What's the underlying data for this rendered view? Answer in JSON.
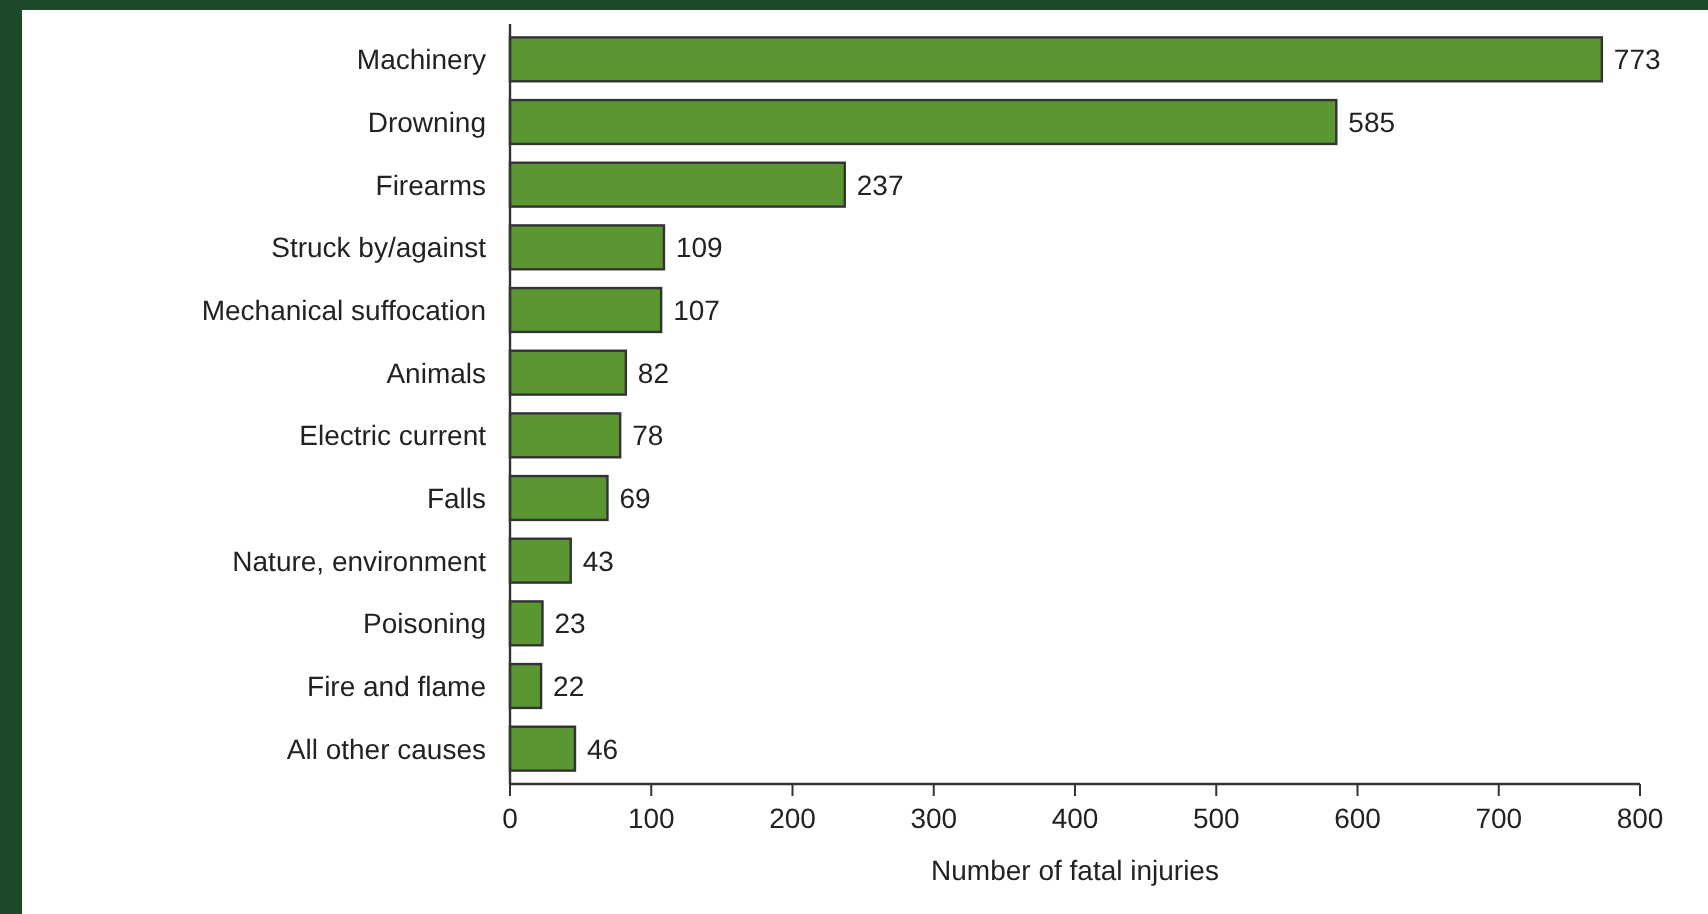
{
  "chart_data": {
    "type": "bar",
    "orientation": "horizontal",
    "xlabel": "Number of fatal injuries",
    "categories": [
      "Machinery",
      "Drowning",
      "Firearms",
      "Struck by/against",
      "Mechanical suffocation",
      "Animals",
      "Electric current",
      "Falls",
      "Nature, environment",
      "Poisoning",
      "Fire and flame",
      "All other causes"
    ],
    "values": [
      773,
      585,
      237,
      109,
      107,
      82,
      78,
      69,
      43,
      23,
      22,
      46
    ],
    "color": "#5a9632",
    "xlim": [
      0,
      800
    ],
    "xticks": [
      0,
      100,
      200,
      300,
      400,
      500,
      600,
      700,
      800
    ],
    "data_labels": true,
    "grid": false
  }
}
